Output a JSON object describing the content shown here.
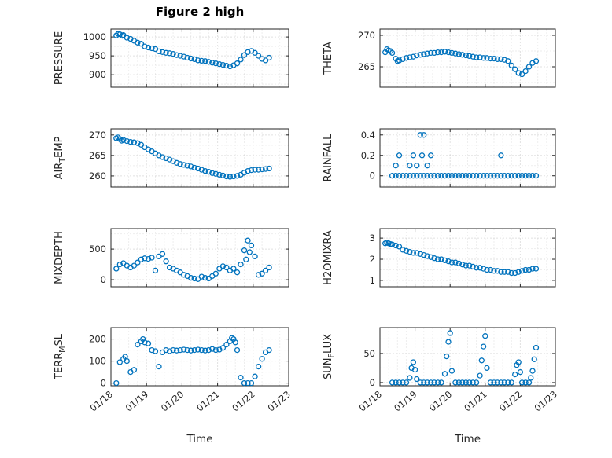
{
  "figure": {
    "title": "Figure 2 high"
  },
  "style": {
    "marker_color": "#0072BD",
    "axis_color": "#262626",
    "major_grid_color": "#c4c4c4",
    "minor_grid_color": "#dddddd",
    "background": "#ffffff"
  },
  "chart_data": [
    {
      "name": "pressure",
      "type": "scatter",
      "ylabel_parts": {
        "pre": "PRESSURE",
        "sub": "",
        "post": ""
      },
      "xlabel": "",
      "show_x_labels": false,
      "xlim": [
        18,
        23
      ],
      "xticks": [
        18,
        19,
        20,
        21,
        22,
        23
      ],
      "xtick_labels": [
        "01/18",
        "01/19",
        "01/20",
        "01/21",
        "01/22",
        "01/23"
      ],
      "ylim": [
        867,
        1021
      ],
      "yticks": [
        900,
        950,
        1000
      ],
      "ytick_labels": [
        "900",
        "950",
        "1000"
      ],
      "yminor_step": 25,
      "x": [
        18.15,
        18.25,
        18.35,
        18.45,
        18.55,
        18.65,
        18.75,
        18.85,
        18.95,
        19.05,
        19.15,
        19.25,
        19.35,
        19.45,
        19.55,
        19.65,
        19.75,
        19.85,
        19.95,
        20.05,
        20.15,
        20.25,
        20.35,
        20.45,
        20.55,
        20.65,
        20.75,
        20.85,
        20.95,
        21.05,
        21.15,
        21.25,
        21.35,
        21.45,
        21.55,
        21.65,
        21.75,
        21.85,
        21.95,
        22.05,
        22.15,
        22.25,
        22.35,
        22.45,
        18.2,
        18.32
      ],
      "y": [
        1004,
        1007,
        1005,
        998,
        995,
        990,
        985,
        982,
        975,
        972,
        970,
        968,
        962,
        960,
        958,
        957,
        955,
        952,
        950,
        948,
        945,
        943,
        941,
        938,
        937,
        936,
        934,
        932,
        930,
        928,
        926,
        924,
        922,
        925,
        930,
        940,
        952,
        960,
        963,
        958,
        950,
        942,
        938,
        945,
        1008,
        1003
      ]
    },
    {
      "name": "theta",
      "type": "scatter",
      "ylabel_parts": {
        "pre": "THETA",
        "sub": "",
        "post": ""
      },
      "xlabel": "",
      "show_x_labels": false,
      "xlim": [
        18,
        23
      ],
      "xticks": [
        18,
        19,
        20,
        21,
        22,
        23
      ],
      "xtick_labels": [
        "01/18",
        "01/19",
        "01/20",
        "01/21",
        "01/22",
        "01/23"
      ],
      "ylim": [
        261.75,
        271
      ],
      "yticks": [
        265,
        270
      ],
      "ytick_labels": [
        "265",
        "270"
      ],
      "yminor_step": 2.5,
      "x": [
        18.15,
        18.25,
        18.35,
        18.45,
        18.55,
        18.65,
        18.75,
        18.85,
        18.95,
        19.05,
        19.15,
        19.25,
        19.35,
        19.45,
        19.55,
        19.65,
        19.75,
        19.85,
        19.95,
        20.05,
        20.15,
        20.25,
        20.35,
        20.45,
        20.55,
        20.65,
        20.75,
        20.85,
        20.95,
        21.05,
        21.15,
        21.25,
        21.35,
        21.45,
        21.55,
        21.65,
        21.75,
        21.85,
        21.95,
        22.05,
        22.15,
        22.25,
        22.35,
        22.45,
        18.2,
        18.3,
        18.5
      ],
      "y": [
        267.3,
        267.6,
        267.2,
        266.3,
        266.0,
        266.2,
        266.4,
        266.5,
        266.6,
        266.8,
        266.9,
        267.0,
        267.1,
        267.2,
        267.2,
        267.3,
        267.3,
        267.4,
        267.3,
        267.2,
        267.1,
        267.0,
        266.9,
        266.8,
        266.7,
        266.6,
        266.5,
        266.5,
        266.4,
        266.4,
        266.3,
        266.3,
        266.2,
        266.2,
        266.1,
        265.9,
        265.2,
        264.6,
        264.0,
        263.8,
        264.3,
        265.0,
        265.6,
        265.9,
        267.8,
        267.5,
        265.9
      ]
    },
    {
      "name": "air-temp",
      "type": "scatter",
      "ylabel_parts": {
        "pre": "AIR",
        "sub": "T",
        "post": "EMP"
      },
      "xlabel": "",
      "show_x_labels": false,
      "xlim": [
        18,
        23
      ],
      "xticks": [
        18,
        19,
        20,
        21,
        22,
        23
      ],
      "xtick_labels": [
        "01/18",
        "01/19",
        "01/20",
        "01/21",
        "01/22",
        "01/23"
      ],
      "ylim": [
        257.3,
        271.5
      ],
      "yticks": [
        260,
        265,
        270
      ],
      "ytick_labels": [
        "260",
        "265",
        "270"
      ],
      "yminor_step": 2.5,
      "x": [
        18.15,
        18.25,
        18.35,
        18.45,
        18.55,
        18.65,
        18.75,
        18.85,
        18.95,
        19.05,
        19.15,
        19.25,
        19.35,
        19.45,
        19.55,
        19.65,
        19.75,
        19.85,
        19.95,
        20.05,
        20.15,
        20.25,
        20.35,
        20.45,
        20.55,
        20.65,
        20.75,
        20.85,
        20.95,
        21.05,
        21.15,
        21.25,
        21.35,
        21.45,
        21.55,
        21.65,
        21.75,
        21.85,
        21.95,
        22.05,
        22.15,
        22.25,
        22.35,
        22.45,
        18.2,
        18.3
      ],
      "y": [
        269.2,
        269.0,
        268.8,
        268.5,
        268.3,
        268.2,
        268.0,
        267.6,
        267.0,
        266.5,
        266.0,
        265.5,
        265.0,
        264.6,
        264.3,
        264.0,
        263.6,
        263.2,
        262.9,
        262.7,
        262.5,
        262.3,
        262.0,
        261.8,
        261.5,
        261.2,
        261.0,
        260.7,
        260.5,
        260.3,
        260.1,
        259.9,
        259.8,
        259.9,
        260.0,
        260.3,
        260.8,
        261.2,
        261.4,
        261.5,
        261.5,
        261.6,
        261.7,
        261.8,
        269.4,
        268.6
      ]
    },
    {
      "name": "rainfall",
      "type": "scatter",
      "ylabel_parts": {
        "pre": "RAINFALL",
        "sub": "",
        "post": ""
      },
      "xlabel": "",
      "show_x_labels": false,
      "xlim": [
        18,
        23
      ],
      "xticks": [
        18,
        19,
        20,
        21,
        22,
        23
      ],
      "xtick_labels": [
        "01/18",
        "01/19",
        "01/20",
        "01/21",
        "01/22",
        "01/23"
      ],
      "ylim": [
        -0.11,
        0.46
      ],
      "yticks": [
        0,
        0.2,
        0.4
      ],
      "ytick_labels": [
        "0",
        "0.2",
        "0.4"
      ],
      "yminor_step": 0.1,
      "x": [
        18.35,
        18.45,
        18.55,
        18.65,
        18.75,
        18.85,
        18.95,
        19.05,
        19.15,
        19.25,
        19.35,
        19.45,
        19.55,
        19.65,
        19.75,
        19.85,
        19.95,
        20.05,
        20.15,
        20.25,
        20.35,
        20.45,
        20.55,
        20.65,
        20.75,
        20.85,
        20.95,
        21.05,
        21.15,
        21.25,
        21.35,
        21.45,
        21.55,
        21.65,
        21.75,
        21.85,
        21.95,
        22.05,
        22.15,
        22.25,
        22.35,
        22.45,
        18.45,
        18.55,
        18.85,
        18.95,
        19.05,
        19.15,
        19.25,
        19.2,
        19.35,
        19.45,
        21.45
      ],
      "y": [
        0,
        0,
        0,
        0,
        0,
        0,
        0,
        0,
        0,
        0,
        0,
        0,
        0,
        0,
        0,
        0,
        0,
        0,
        0,
        0,
        0,
        0,
        0,
        0,
        0,
        0,
        0,
        0,
        0,
        0,
        0,
        0,
        0,
        0,
        0,
        0,
        0,
        0,
        0,
        0,
        0,
        0,
        0.1,
        0.2,
        0.1,
        0.2,
        0.1,
        0.4,
        0.4,
        0.2,
        0.1,
        0.2,
        0.2
      ]
    },
    {
      "name": "mixdepth",
      "type": "scatter",
      "ylabel_parts": {
        "pre": "MIXDEPTH",
        "sub": "",
        "post": ""
      },
      "xlabel": "",
      "show_x_labels": false,
      "xlim": [
        18,
        23
      ],
      "xticks": [
        18,
        19,
        20,
        21,
        22,
        23
      ],
      "xtick_labels": [
        "01/18",
        "01/19",
        "01/20",
        "01/21",
        "01/22",
        "01/23"
      ],
      "ylim": [
        -115,
        835
      ],
      "yticks": [
        0,
        500
      ],
      "ytick_labels": [
        "0",
        "500"
      ],
      "yminor_step": 250,
      "x": [
        18.15,
        18.25,
        18.35,
        18.45,
        18.55,
        18.65,
        18.75,
        18.85,
        18.95,
        19.05,
        19.15,
        19.25,
        19.35,
        19.45,
        19.55,
        19.65,
        19.75,
        19.85,
        19.95,
        20.05,
        20.15,
        20.25,
        20.35,
        20.45,
        20.55,
        20.65,
        20.75,
        20.85,
        20.95,
        21.05,
        21.15,
        21.25,
        21.35,
        21.45,
        21.55,
        21.65,
        21.75,
        21.85,
        21.95,
        22.05,
        22.15,
        22.25,
        22.35,
        22.45,
        21.8,
        21.9
      ],
      "y": [
        180,
        250,
        270,
        230,
        200,
        230,
        280,
        330,
        350,
        340,
        360,
        150,
        380,
        420,
        300,
        200,
        180,
        150,
        120,
        80,
        60,
        30,
        20,
        10,
        50,
        30,
        20,
        60,
        100,
        180,
        220,
        200,
        150,
        180,
        120,
        250,
        480,
        640,
        560,
        380,
        80,
        100,
        150,
        200,
        330,
        450
      ]
    },
    {
      "name": "h2omixra",
      "type": "scatter",
      "ylabel_parts": {
        "pre": "H2OMIXRA",
        "sub": "",
        "post": ""
      },
      "xlabel": "",
      "show_x_labels": false,
      "xlim": [
        18,
        23
      ],
      "xticks": [
        18,
        19,
        20,
        21,
        22,
        23
      ],
      "xtick_labels": [
        "01/18",
        "01/19",
        "01/20",
        "01/21",
        "01/22",
        "01/23"
      ],
      "ylim": [
        0.7,
        3.45
      ],
      "yticks": [
        1,
        2,
        3
      ],
      "ytick_labels": [
        "1",
        "2",
        "3"
      ],
      "yminor_step": 0.5,
      "x": [
        18.15,
        18.25,
        18.35,
        18.45,
        18.55,
        18.65,
        18.75,
        18.85,
        18.95,
        19.05,
        19.15,
        19.25,
        19.35,
        19.45,
        19.55,
        19.65,
        19.75,
        19.85,
        19.95,
        20.05,
        20.15,
        20.25,
        20.35,
        20.45,
        20.55,
        20.65,
        20.75,
        20.85,
        20.95,
        21.05,
        21.15,
        21.25,
        21.35,
        21.45,
        21.55,
        21.65,
        21.75,
        21.85,
        21.95,
        22.05,
        22.15,
        22.25,
        22.35,
        22.45,
        18.2,
        18.3
      ],
      "y": [
        2.75,
        2.75,
        2.7,
        2.65,
        2.6,
        2.45,
        2.4,
        2.35,
        2.3,
        2.3,
        2.25,
        2.2,
        2.15,
        2.1,
        2.05,
        2.0,
        2.0,
        1.95,
        1.9,
        1.85,
        1.85,
        1.8,
        1.75,
        1.7,
        1.7,
        1.65,
        1.6,
        1.6,
        1.55,
        1.5,
        1.5,
        1.45,
        1.45,
        1.4,
        1.4,
        1.4,
        1.35,
        1.35,
        1.4,
        1.45,
        1.5,
        1.5,
        1.55,
        1.55,
        2.78,
        2.72
      ]
    },
    {
      "name": "terr-msl",
      "type": "scatter",
      "ylabel_parts": {
        "pre": "TERR",
        "sub": "M",
        "post": "SL"
      },
      "xlabel": "Time",
      "show_x_labels": true,
      "xlim": [
        18,
        23
      ],
      "xticks": [
        18,
        19,
        20,
        21,
        22,
        23
      ],
      "xtick_labels": [
        "01/18",
        "01/19",
        "01/20",
        "01/21",
        "01/22",
        "01/23"
      ],
      "ylim": [
        -12,
        252
      ],
      "yticks": [
        0,
        100,
        200
      ],
      "ytick_labels": [
        "0",
        "100",
        "200"
      ],
      "yminor_step": 50,
      "x": [
        18.15,
        18.25,
        18.35,
        18.45,
        18.55,
        18.65,
        18.75,
        18.85,
        18.95,
        19.05,
        19.15,
        19.25,
        19.35,
        19.45,
        19.55,
        19.65,
        19.75,
        19.85,
        19.95,
        20.05,
        20.15,
        20.25,
        20.35,
        20.45,
        20.55,
        20.65,
        20.75,
        20.85,
        20.95,
        21.05,
        21.15,
        21.25,
        21.35,
        21.45,
        21.55,
        21.65,
        21.75,
        21.85,
        21.95,
        22.05,
        22.15,
        22.25,
        22.35,
        22.45,
        18.4,
        18.9,
        21.4,
        21.5
      ],
      "y": [
        0,
        95,
        110,
        100,
        50,
        60,
        175,
        190,
        185,
        180,
        150,
        145,
        75,
        140,
        150,
        145,
        150,
        148,
        150,
        152,
        150,
        148,
        150,
        152,
        150,
        148,
        150,
        155,
        150,
        152,
        160,
        175,
        190,
        200,
        150,
        25,
        0,
        0,
        0,
        30,
        75,
        110,
        140,
        150,
        120,
        200,
        205,
        185
      ]
    },
    {
      "name": "sun-flux",
      "type": "scatter",
      "ylabel_parts": {
        "pre": "SUN",
        "sub": "F",
        "post": "LUX"
      },
      "xlabel": "Time",
      "show_x_labels": true,
      "xlim": [
        18,
        23
      ],
      "xticks": [
        18,
        19,
        20,
        21,
        22,
        23
      ],
      "xtick_labels": [
        "01/18",
        "01/19",
        "01/20",
        "01/21",
        "01/22",
        "01/23"
      ],
      "ylim": [
        -5.5,
        94.5
      ],
      "yticks": [
        0,
        50
      ],
      "ytick_labels": [
        "0",
        "50"
      ],
      "yminor_step": 25,
      "x": [
        18.35,
        18.45,
        18.55,
        18.65,
        18.75,
        18.85,
        18.9,
        18.95,
        19.0,
        19.05,
        19.15,
        19.25,
        19.35,
        19.45,
        19.55,
        19.65,
        19.75,
        19.85,
        19.9,
        19.95,
        20.0,
        20.05,
        20.15,
        20.25,
        20.35,
        20.45,
        20.55,
        20.65,
        20.75,
        20.85,
        20.9,
        20.95,
        21.0,
        21.05,
        21.15,
        21.25,
        21.35,
        21.45,
        21.55,
        21.65,
        21.75,
        21.85,
        21.9,
        21.95,
        22.0,
        22.05,
        22.15,
        22.25,
        22.3,
        22.35,
        22.4,
        22.45
      ],
      "y": [
        0,
        0,
        0,
        0,
        0,
        8,
        25,
        35,
        22,
        6,
        0,
        0,
        0,
        0,
        0,
        0,
        0,
        15,
        45,
        70,
        85,
        20,
        0,
        0,
        0,
        0,
        0,
        0,
        0,
        12,
        38,
        62,
        80,
        25,
        0,
        0,
        0,
        0,
        0,
        0,
        0,
        14,
        30,
        35,
        18,
        0,
        0,
        0,
        8,
        20,
        40,
        60
      ]
    }
  ]
}
